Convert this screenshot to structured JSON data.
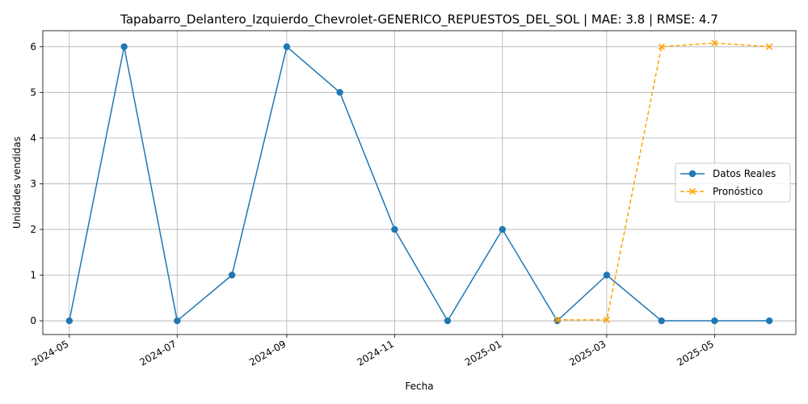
{
  "chart_data": {
    "type": "line",
    "title": "Tapabarro_Delantero_Izquierdo_Chevrolet-GENERICO_REPUESTOS_DEL_SOL | MAE: 3.8 | RMSE: 4.7",
    "xlabel": "Fecha",
    "ylabel": "Unidades vendidas",
    "ylim": [
      -0.3,
      6.35
    ],
    "xlim": [
      "2024-04-16",
      "2025-06-16"
    ],
    "grid": true,
    "legend_position": "center-right",
    "x_ticks": [
      "2024-05",
      "2024-07",
      "2024-09",
      "2024-11",
      "2025-01",
      "2025-03",
      "2025-05"
    ],
    "y_ticks": [
      0,
      1,
      2,
      3,
      4,
      5,
      6
    ],
    "series": [
      {
        "name": "Datos Reales",
        "color": "#1f77b4",
        "style": "solid",
        "marker": "circle",
        "x": [
          "2024-05-01",
          "2024-06-01",
          "2024-07-01",
          "2024-08-01",
          "2024-09-01",
          "2024-10-01",
          "2024-11-01",
          "2024-12-01",
          "2025-01-01",
          "2025-02-01",
          "2025-03-01",
          "2025-04-01",
          "2025-05-01",
          "2025-06-01"
        ],
        "values": [
          0,
          6,
          0,
          1,
          6,
          5,
          2,
          0,
          2,
          0,
          1,
          0,
          0,
          0
        ]
      },
      {
        "name": "Pronóstico",
        "color": "#ffa500",
        "style": "dashed",
        "marker": "x",
        "x": [
          "2025-02-01",
          "2025-03-01",
          "2025-04-01",
          "2025-05-01",
          "2025-06-01"
        ],
        "values": [
          0.02,
          0.02,
          6.0,
          6.08,
          6.0
        ]
      }
    ]
  }
}
